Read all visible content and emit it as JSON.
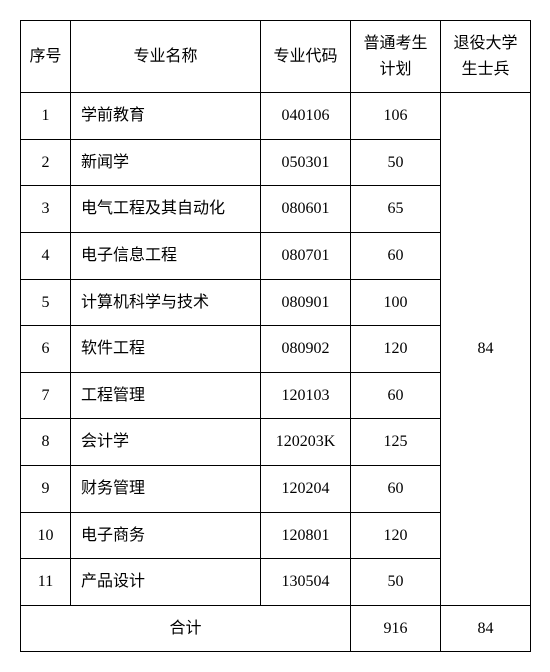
{
  "headers": {
    "seq": "序号",
    "name": "专业名称",
    "code": "专业代码",
    "plan": "普通考生计划",
    "veteran": "退役大学生士兵"
  },
  "rows": [
    {
      "seq": "1",
      "name": "学前教育",
      "code": "040106",
      "plan": "106"
    },
    {
      "seq": "2",
      "name": "新闻学",
      "code": "050301",
      "plan": "50"
    },
    {
      "seq": "3",
      "name": "电气工程及其自动化",
      "code": "080601",
      "plan": "65"
    },
    {
      "seq": "4",
      "name": "电子信息工程",
      "code": "080701",
      "plan": "60"
    },
    {
      "seq": "5",
      "name": "计算机科学与技术",
      "code": "080901",
      "plan": "100"
    },
    {
      "seq": "6",
      "name": "软件工程",
      "code": "080902",
      "plan": "120"
    },
    {
      "seq": "7",
      "name": "工程管理",
      "code": "120103",
      "plan": "60"
    },
    {
      "seq": "8",
      "name": "会计学",
      "code": "120203K",
      "plan": "125"
    },
    {
      "seq": "9",
      "name": "财务管理",
      "code": "120204",
      "plan": "60"
    },
    {
      "seq": "10",
      "name": "电子商务",
      "code": "120801",
      "plan": "120"
    },
    {
      "seq": "11",
      "name": "产品设计",
      "code": "130504",
      "plan": "50"
    }
  ],
  "veteran_merged": "84",
  "total": {
    "label": "合计",
    "plan": "916",
    "veteran": "84"
  }
}
